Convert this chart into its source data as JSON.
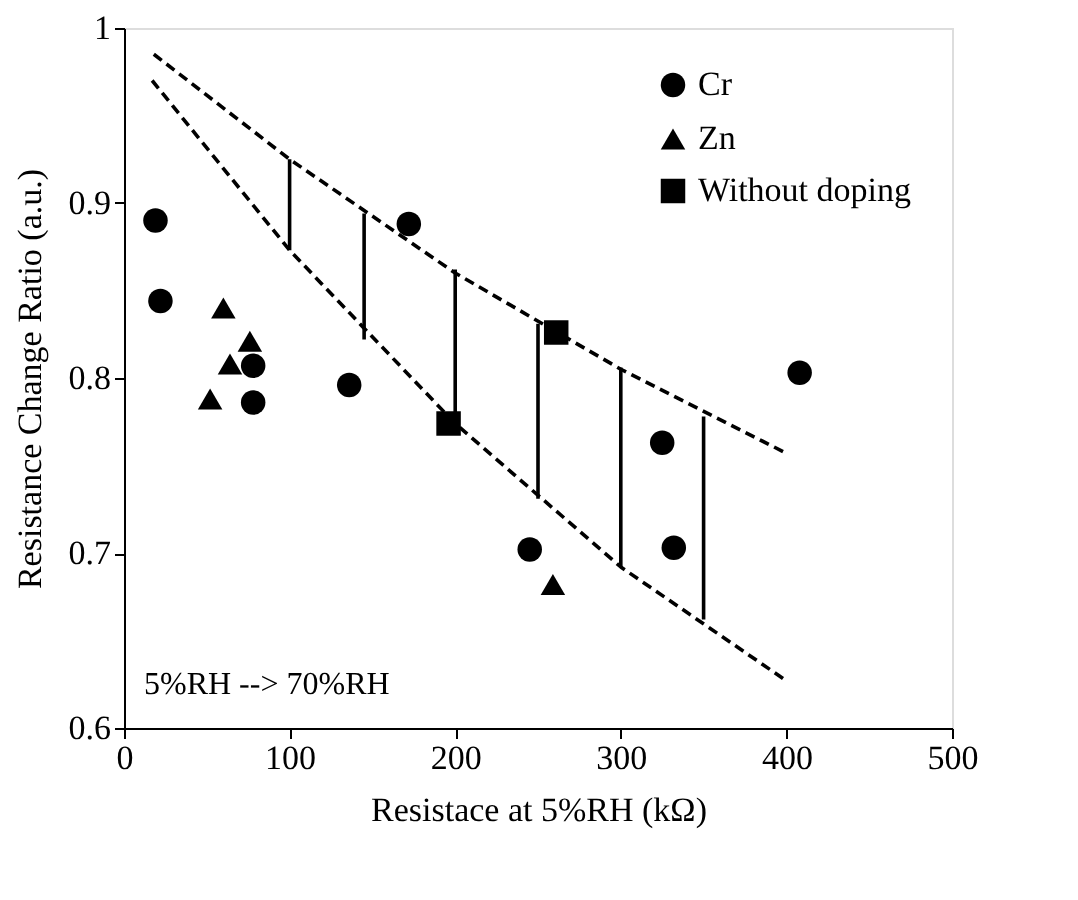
{
  "chart_data": {
    "type": "scatter",
    "xlabel": "Resistace at 5%RH  (kΩ)",
    "ylabel": "Resistance Change Ratio (a.u.)",
    "xlim": [
      0,
      500
    ],
    "xticks": [
      0,
      100,
      200,
      300,
      400,
      500
    ],
    "ylim": [
      0.6,
      1
    ],
    "yticks": [
      0.6,
      0.7,
      0.8,
      0.9,
      1
    ],
    "grid": false,
    "legend": "top right",
    "annotations": [
      "5%RH --> 70%RH"
    ],
    "series": [
      {
        "name": "Cr",
        "color": "#000000",
        "marker": "circle",
        "x": [
          19,
          22,
          78,
          78,
          136,
          172,
          245,
          325,
          332,
          408
        ],
        "values": [
          0.89,
          0.844,
          0.807,
          0.786,
          0.796,
          0.888,
          0.702,
          0.763,
          0.703,
          0.803
        ]
      },
      {
        "name": "Zn",
        "color": "#000000",
        "marker": "triangle",
        "x": [
          60,
          76,
          64,
          52,
          259
        ],
        "values": [
          0.84,
          0.821,
          0.808,
          0.788,
          0.682
        ]
      },
      {
        "name": "Without doping",
        "color": "#000000",
        "marker": "square",
        "x": [
          196,
          261
        ],
        "values": [
          0.774,
          0.826
        ]
      },
      {
        "type": "line",
        "color": "#000000",
        "line_style": "dashed",
        "marker": "none",
        "x": [
          18,
          100,
          200,
          300,
          400
        ],
        "values": [
          0.985,
          0.925,
          0.86,
          0.805,
          0.757
        ]
      },
      {
        "type": "line",
        "color": "#000000",
        "line_style": "dashed",
        "marker": "none",
        "x": [
          17,
          100,
          200,
          300,
          400
        ],
        "values": [
          0.97,
          0.873,
          0.774,
          0.692,
          0.627
        ]
      },
      {
        "type": "line",
        "color": "#000000",
        "line_style": "solid",
        "marker": "none",
        "x": [
          100,
          100
        ],
        "values": [
          0.925,
          0.873
        ]
      },
      {
        "type": "line",
        "color": "#000000",
        "line_style": "solid",
        "marker": "none",
        "x": [
          145,
          145
        ],
        "values": [
          0.894,
          0.822
        ]
      },
      {
        "type": "line",
        "color": "#000000",
        "line_style": "solid",
        "marker": "none",
        "x": [
          200,
          200
        ],
        "values": [
          0.862,
          0.776
        ]
      },
      {
        "type": "line",
        "color": "#000000",
        "line_style": "solid",
        "marker": "none",
        "x": [
          250,
          250
        ],
        "values": [
          0.831,
          0.731
        ]
      },
      {
        "type": "line",
        "color": "#000000",
        "line_style": "solid",
        "marker": "none",
        "x": [
          300,
          300
        ],
        "values": [
          0.806,
          0.692
        ]
      },
      {
        "type": "line",
        "color": "#000000",
        "line_style": "solid",
        "marker": "none",
        "x": [
          350,
          350
        ],
        "values": [
          0.778,
          0.662
        ]
      }
    ]
  }
}
